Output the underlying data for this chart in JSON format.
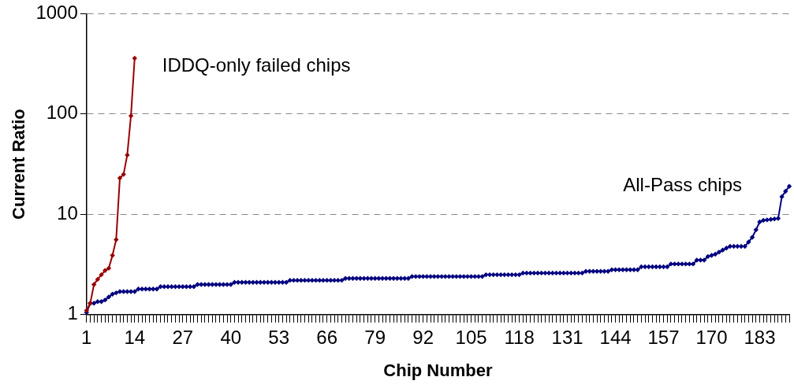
{
  "chart_data": {
    "type": "line",
    "xlabel": "Chip Number",
    "ylabel": "Current Ratio",
    "categories": [
      "1",
      null,
      null,
      null,
      null,
      null,
      null,
      null,
      null,
      null,
      null,
      null,
      null,
      "14",
      null,
      null,
      null,
      null,
      null,
      null,
      null,
      null,
      null,
      null,
      null,
      null,
      "27",
      null,
      null,
      null,
      null,
      null,
      null,
      null,
      null,
      null,
      null,
      null,
      null,
      "40",
      null,
      null,
      null,
      null,
      null,
      null,
      null,
      null,
      null,
      null,
      null,
      null,
      "53",
      null,
      null,
      null,
      null,
      null,
      null,
      null,
      null,
      null,
      null,
      null,
      null,
      "66",
      null,
      null,
      null,
      null,
      null,
      null,
      null,
      null,
      null,
      null,
      null,
      null,
      "79",
      null,
      null,
      null,
      null,
      null,
      null,
      null,
      null,
      null,
      null,
      null,
      null,
      "92",
      null,
      null,
      null,
      null,
      null,
      null,
      null,
      null,
      null,
      null,
      null,
      null,
      "105",
      null,
      null,
      null,
      null,
      null,
      null,
      null,
      null,
      null,
      null,
      null,
      null,
      "118",
      null,
      null,
      null,
      null,
      null,
      null,
      null,
      null,
      null,
      null,
      null,
      null,
      "131",
      null,
      null,
      null,
      null,
      null,
      null,
      null,
      null,
      null,
      null,
      null,
      null,
      "144",
      null,
      null,
      null,
      null,
      null,
      null,
      null,
      null,
      null,
      null,
      null,
      null,
      "157",
      null,
      null,
      null,
      null,
      null,
      null,
      null,
      null,
      null,
      null,
      null,
      null,
      "170",
      null,
      null,
      null,
      null,
      null,
      null,
      null,
      null,
      null,
      null,
      null,
      null,
      "183",
      null,
      null,
      null,
      null,
      null,
      null,
      null,
      null
    ],
    "series": [
      {
        "name": "All-Pass chips",
        "color": "#000080",
        "values": [
          1.05,
          1.3,
          1.3,
          1.35,
          1.35,
          1.4,
          1.5,
          1.6,
          1.65,
          1.7,
          1.7,
          1.7,
          1.7,
          1.7,
          1.8,
          1.8,
          1.8,
          1.8,
          1.8,
          1.8,
          1.9,
          1.9,
          1.9,
          1.9,
          1.9,
          1.9,
          1.9,
          1.9,
          1.9,
          1.9,
          2.0,
          2.0,
          2.0,
          2.0,
          2.0,
          2.0,
          2.0,
          2.0,
          2.0,
          2.0,
          2.1,
          2.1,
          2.1,
          2.1,
          2.1,
          2.1,
          2.1,
          2.1,
          2.1,
          2.1,
          2.1,
          2.1,
          2.1,
          2.1,
          2.1,
          2.2,
          2.2,
          2.2,
          2.2,
          2.2,
          2.2,
          2.2,
          2.2,
          2.2,
          2.2,
          2.2,
          2.2,
          2.2,
          2.2,
          2.2,
          2.3,
          2.3,
          2.3,
          2.3,
          2.3,
          2.3,
          2.3,
          2.3,
          2.3,
          2.3,
          2.3,
          2.3,
          2.3,
          2.3,
          2.3,
          2.3,
          2.3,
          2.3,
          2.4,
          2.4,
          2.4,
          2.4,
          2.4,
          2.4,
          2.4,
          2.4,
          2.4,
          2.4,
          2.4,
          2.4,
          2.4,
          2.4,
          2.4,
          2.4,
          2.4,
          2.4,
          2.4,
          2.4,
          2.5,
          2.5,
          2.5,
          2.5,
          2.5,
          2.5,
          2.5,
          2.5,
          2.5,
          2.5,
          2.6,
          2.6,
          2.6,
          2.6,
          2.6,
          2.6,
          2.6,
          2.6,
          2.6,
          2.6,
          2.6,
          2.6,
          2.6,
          2.6,
          2.6,
          2.6,
          2.6,
          2.7,
          2.7,
          2.7,
          2.7,
          2.7,
          2.7,
          2.7,
          2.8,
          2.8,
          2.8,
          2.8,
          2.8,
          2.8,
          2.8,
          2.8,
          3.0,
          3.0,
          3.0,
          3.0,
          3.0,
          3.0,
          3.0,
          3.0,
          3.2,
          3.2,
          3.2,
          3.2,
          3.2,
          3.2,
          3.2,
          3.5,
          3.5,
          3.5,
          3.8,
          3.9,
          4.0,
          4.2,
          4.4,
          4.6,
          4.8,
          4.8,
          4.8,
          4.8,
          4.8,
          5.3,
          5.9,
          7.0,
          8.4,
          8.7,
          8.8,
          8.9,
          9.0,
          9.1,
          15,
          17,
          19
        ]
      },
      {
        "name": "IDDQ-only failed chips",
        "color": "#990000",
        "values": [
          1.1,
          1.3,
          2.0,
          2.25,
          2.5,
          2.75,
          2.9,
          3.9,
          5.6,
          23,
          25,
          39,
          96,
          360,
          null,
          null,
          null,
          null,
          null,
          null,
          null,
          null,
          null,
          null,
          null,
          null,
          null,
          null,
          null,
          null,
          null,
          null,
          null,
          null,
          null,
          null,
          null,
          null,
          null,
          null,
          null,
          null,
          null,
          null,
          null,
          null,
          null,
          null,
          null,
          null,
          null,
          null,
          null,
          null,
          null,
          null,
          null,
          null,
          null,
          null,
          null,
          null,
          null,
          null,
          null,
          null,
          null,
          null,
          null,
          null,
          null,
          null,
          null,
          null,
          null,
          null,
          null,
          null,
          null,
          null,
          null,
          null,
          null,
          null,
          null,
          null,
          null,
          null,
          null,
          null,
          null,
          null,
          null,
          null,
          null,
          null,
          null,
          null,
          null,
          null,
          null,
          null,
          null,
          null,
          null,
          null,
          null,
          null,
          null,
          null,
          null,
          null,
          null,
          null,
          null,
          null,
          null,
          null,
          null,
          null,
          null,
          null,
          null,
          null,
          null,
          null,
          null,
          null,
          null,
          null,
          null,
          null,
          null,
          null,
          null,
          null,
          null,
          null,
          null,
          null,
          null,
          null,
          null,
          null,
          null,
          null,
          null,
          null,
          null,
          null,
          null,
          null,
          null,
          null,
          null,
          null,
          null,
          null,
          null,
          null,
          null,
          null,
          null,
          null,
          null,
          null,
          null,
          null,
          null,
          null,
          null,
          null,
          null,
          null,
          null,
          null,
          null,
          null,
          null,
          null,
          null,
          null,
          null,
          null,
          null,
          null,
          null,
          null,
          null,
          null,
          null
        ]
      }
    ],
    "ylim": [
      1,
      1000
    ],
    "yticks": [
      1,
      10,
      100,
      1000
    ],
    "log": "y",
    "grid": "y",
    "legend": false,
    "marker": "diamond",
    "line_style": "solid"
  }
}
